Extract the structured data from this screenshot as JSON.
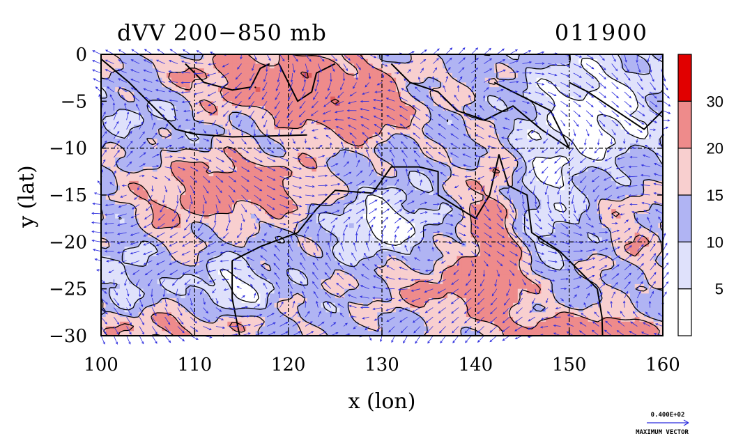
{
  "chart_data": {
    "type": "heatmap",
    "title_left": "dVV 200−850 mb",
    "title_right": "011900",
    "xlabel": "x (lon)",
    "ylabel": "y (lat)",
    "xlim": [
      100,
      160
    ],
    "ylim": [
      -30,
      0
    ],
    "x_ticks": [
      100,
      110,
      120,
      130,
      140,
      150,
      160
    ],
    "x_tick_labels": [
      "100",
      "110",
      "120",
      "130",
      "140",
      "150",
      "160"
    ],
    "y_ticks": [
      0,
      -5,
      -10,
      -15,
      -20,
      -25,
      -30
    ],
    "y_tick_labels": [
      "0",
      "−5",
      "−10",
      "−15",
      "−20",
      "−25",
      "−30"
    ],
    "grid_lines_x": [
      110,
      120,
      130,
      140,
      150
    ],
    "grid_lines_y": [
      -10,
      -20
    ],
    "colorbar": {
      "levels": [
        5,
        10,
        15,
        20,
        30
      ],
      "labels": [
        "5",
        "10",
        "15",
        "20",
        "30"
      ],
      "colors": [
        "#ffffff",
        "#dfe1fb",
        "#b0b4f3",
        "#f8cfcf",
        "#ee8b8b",
        "#de5a5a",
        "#e10000"
      ]
    },
    "vector_color": "#2b2bde",
    "max_vector_value": "0.400E+02",
    "max_vector_label": "MAXIMUM VECTOR"
  }
}
